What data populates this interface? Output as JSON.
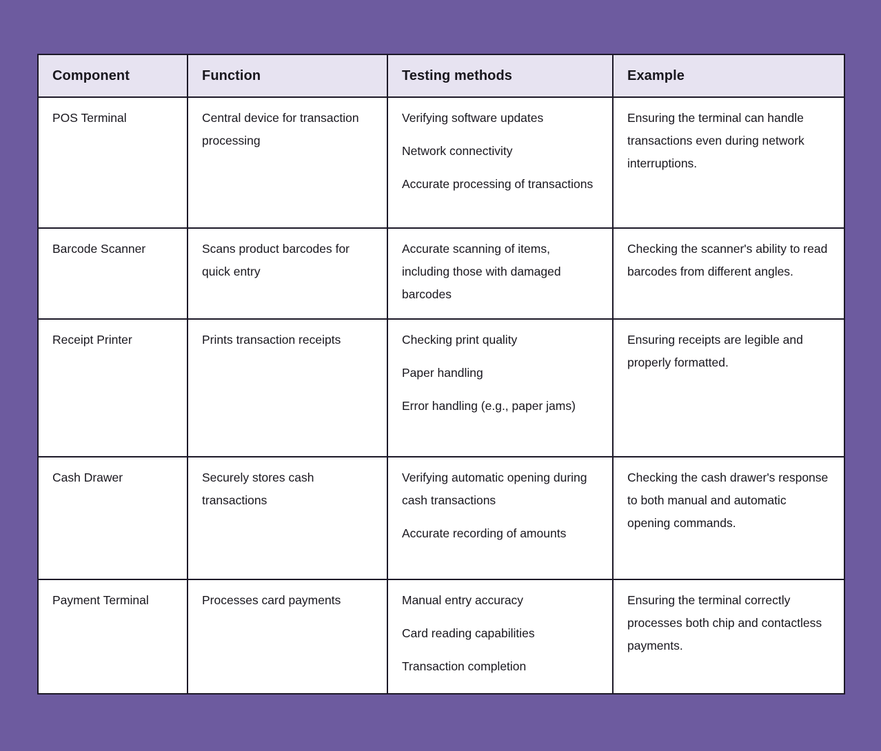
{
  "colors": {
    "page_background": "#6d5b9f",
    "header_background": "#e7e3f1",
    "cell_background": "#ffffff",
    "border_color": "#1c1827",
    "text_color": "#19171e"
  },
  "table": {
    "headers": [
      "Component",
      "Function",
      "Testing methods",
      "Example"
    ],
    "rows": [
      {
        "component": [
          "POS Terminal"
        ],
        "function": [
          "Central device for transaction processing"
        ],
        "testing_methods": [
          "Verifying software updates",
          "Network connectivity",
          "Accurate processing of transactions"
        ],
        "example": [
          "Ensuring the terminal can handle transactions even during network interruptions."
        ]
      },
      {
        "component": [
          "Barcode Scanner"
        ],
        "function": [
          "Scans product barcodes for quick entry"
        ],
        "testing_methods": [
          "Accurate scanning of items, including those with damaged barcodes"
        ],
        "example": [
          "Checking the scanner's ability to read barcodes from different angles."
        ]
      },
      {
        "component": [
          "Receipt Printer"
        ],
        "function": [
          "Prints transaction receipts"
        ],
        "testing_methods": [
          "Checking print quality",
          "Paper handling",
          "Error handling (e.g., paper jams)"
        ],
        "example": [
          "Ensuring receipts are legible and properly formatted."
        ]
      },
      {
        "component": [
          "Cash Drawer"
        ],
        "function": [
          "Securely stores cash transactions"
        ],
        "testing_methods": [
          "Verifying automatic opening during cash transactions",
          "Accurate recording of amounts"
        ],
        "example": [
          "Checking the cash drawer's response to both manual and automatic opening commands."
        ]
      },
      {
        "component": [
          "Payment Terminal"
        ],
        "function": [
          "Processes card payments"
        ],
        "testing_methods": [
          "Manual entry accuracy",
          "Card reading capabilities",
          "Transaction completion"
        ],
        "example": [
          "Ensuring the terminal correctly processes both chip and contactless payments."
        ]
      }
    ]
  }
}
